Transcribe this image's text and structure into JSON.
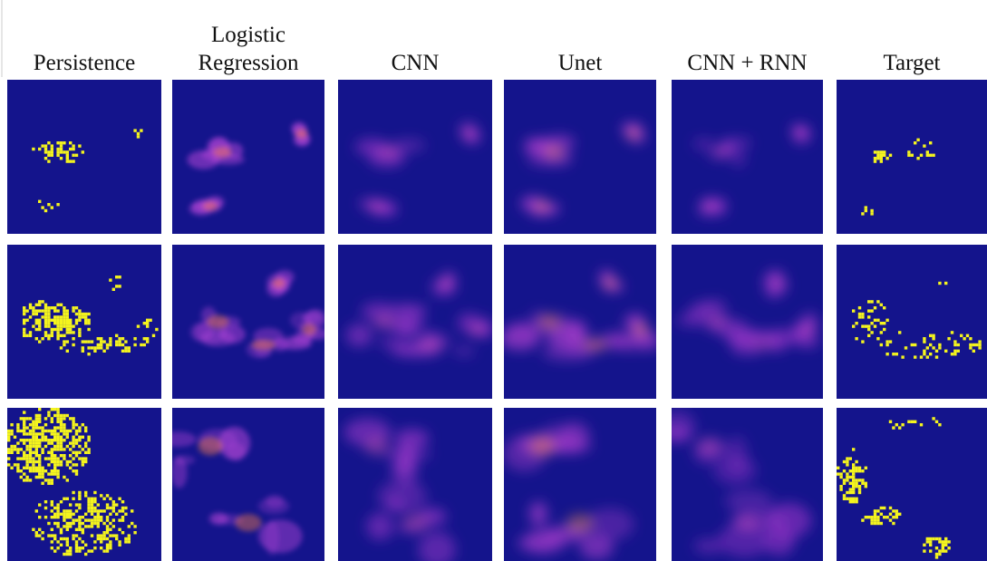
{
  "columns": [
    "Persistence",
    "Logistic Regression",
    "CNN",
    "Unet",
    "CNN + RNN",
    "Target"
  ]
}
